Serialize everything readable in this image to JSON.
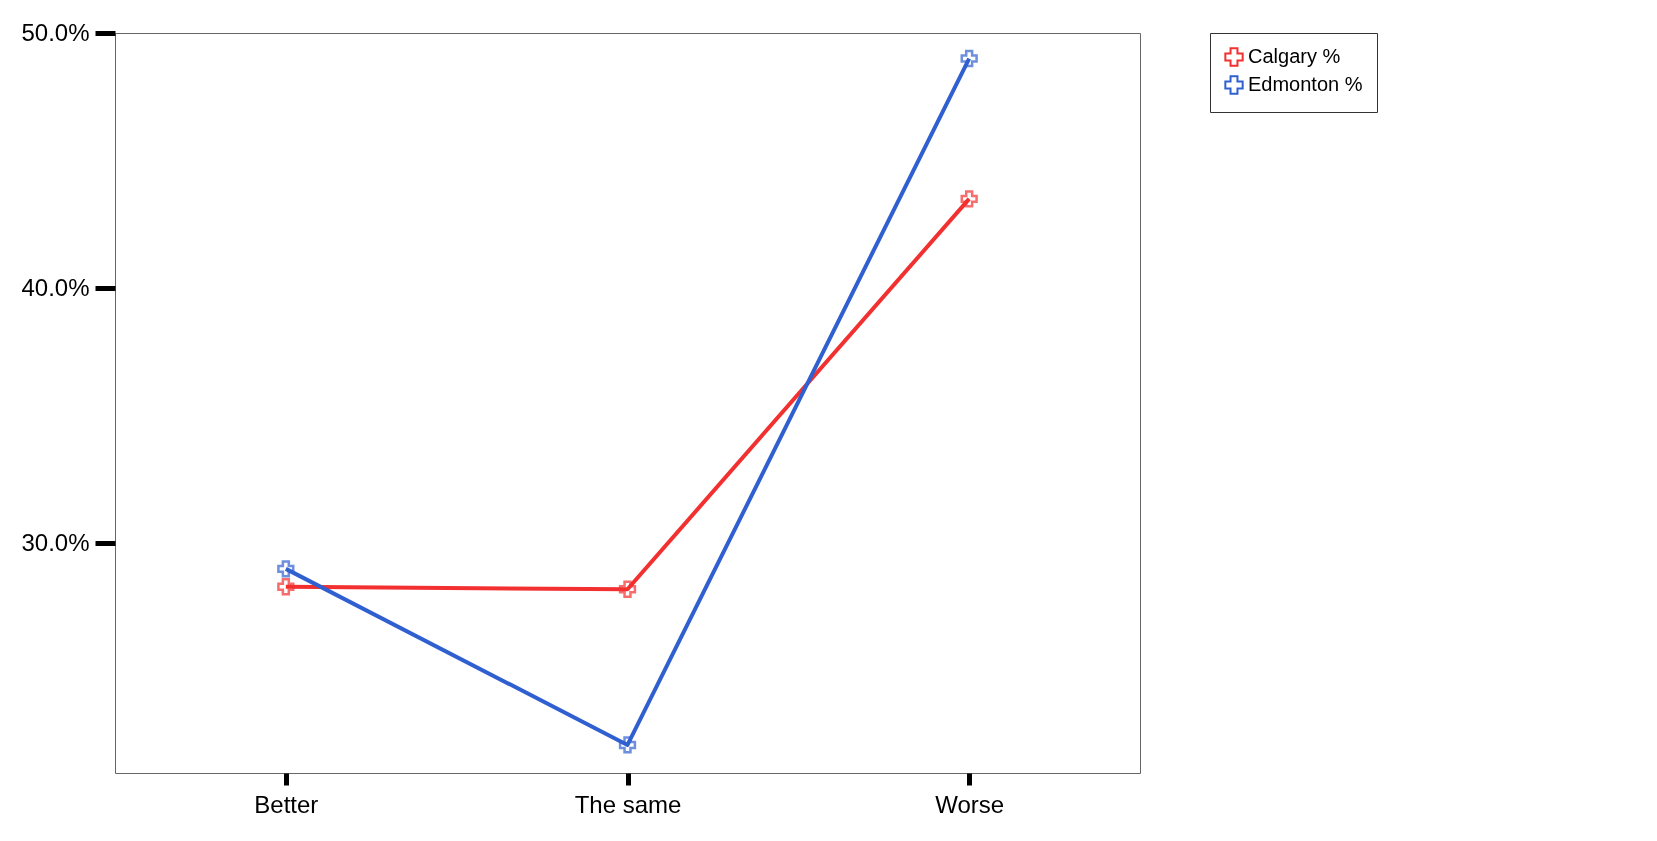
{
  "chart_data": {
    "type": "line",
    "categories": [
      "Better",
      "The same",
      "Worse"
    ],
    "series": [
      {
        "name": "Calgary %",
        "color": "#f23030",
        "values": [
          28.3,
          28.2,
          43.5
        ]
      },
      {
        "name": "Edmonton %",
        "color": "#3060d0",
        "values": [
          29.0,
          22.1,
          49.0
        ]
      }
    ],
    "ylim": [
      21,
      50
    ],
    "yticks": [
      {
        "value": 30,
        "label": "30.0%"
      },
      {
        "value": 40,
        "label": "40.0%"
      },
      {
        "value": 50,
        "label": "50.0%"
      }
    ],
    "grid": false,
    "legend": "top right",
    "marker": "cross",
    "line_style": "solid"
  }
}
